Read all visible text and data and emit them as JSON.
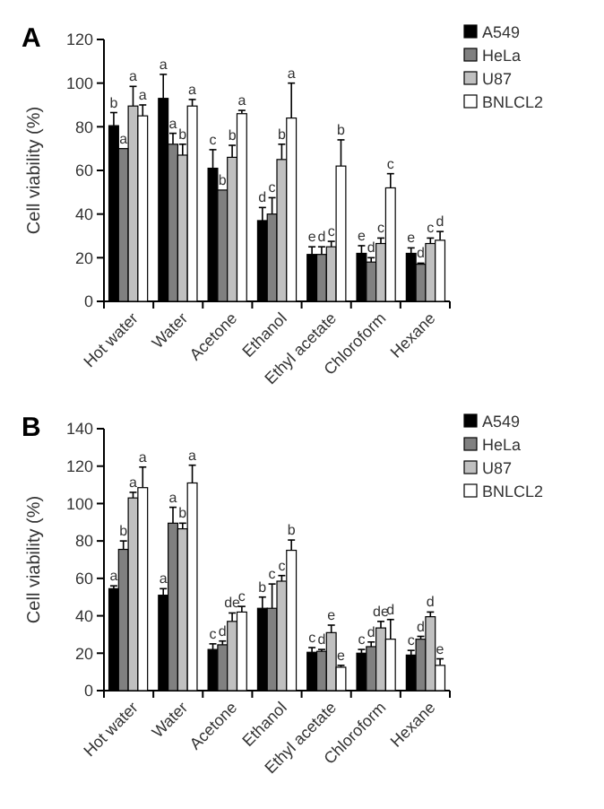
{
  "chart_data": [
    {
      "type": "bar",
      "title": "A",
      "ylabel": "Cell viability (%)",
      "categories": [
        "Hot water",
        "Water",
        "Acetone",
        "Ethanol",
        "Ethyl acetate",
        "Chloroform",
        "Hexane"
      ],
      "ylim": [
        0,
        120
      ],
      "yticks": [
        0,
        20,
        40,
        60,
        80,
        100,
        120
      ],
      "legend": "top right",
      "series": [
        {
          "name": "A549",
          "color": "#000000",
          "values": [
            80.5,
            93,
            61,
            37,
            21.5,
            22,
            22
          ],
          "errors": [
            6,
            11,
            8.5,
            6,
            3.5,
            3.5,
            2.5
          ],
          "value_labels": [
            "b",
            "a",
            "c",
            "d",
            "e",
            "e",
            "e"
          ]
        },
        {
          "name": "HeLa",
          "color": "#808080",
          "values": [
            70,
            72,
            51,
            40,
            21.5,
            18,
            17
          ],
          "errors": [
            null,
            5,
            null,
            7.5,
            3.5,
            2,
            0.5
          ],
          "value_labels": [
            "a",
            "a",
            "b",
            "c",
            "d",
            "d",
            "d"
          ]
        },
        {
          "name": "U87",
          "color": "#c0c0c0",
          "values": [
            89.5,
            67,
            66,
            65,
            25,
            26.5,
            26.5
          ],
          "errors": [
            9,
            5,
            5.5,
            7,
            2.5,
            2.5,
            2.5
          ],
          "value_labels": [
            "a",
            "b",
            "b",
            "b",
            "c",
            "c",
            "c"
          ]
        },
        {
          "name": "BNLCL2",
          "color": "#ffffff",
          "values": [
            85,
            89.5,
            86,
            84,
            62,
            52,
            28
          ],
          "errors": [
            5,
            3,
            1.5,
            16,
            12,
            6.5,
            4
          ],
          "value_labels": [
            "a",
            "a",
            "a",
            "a",
            "b",
            "c",
            "d"
          ]
        }
      ]
    },
    {
      "type": "bar",
      "title": "B",
      "ylabel": "Cell viability (%)",
      "categories": [
        "Hot water",
        "Water",
        "Acetone",
        "Ethanol",
        "Ethyl acetate",
        "Chloroform",
        "Hexane"
      ],
      "ylim": [
        0,
        140
      ],
      "yticks": [
        0,
        20,
        40,
        60,
        80,
        100,
        120,
        140
      ],
      "legend": "top right",
      "series": [
        {
          "name": "A549",
          "color": "#000000",
          "values": [
            54.5,
            51,
            22,
            44,
            20.5,
            20,
            19
          ],
          "errors": [
            1.5,
            3.5,
            3,
            6,
            2.5,
            2,
            2.5
          ],
          "value_labels": [
            "a",
            "a",
            "c",
            "b",
            "c",
            "c",
            "c"
          ]
        },
        {
          "name": "HeLa",
          "color": "#808080",
          "values": [
            75.5,
            89.5,
            24.5,
            44,
            21,
            23.5,
            27.5
          ],
          "errors": [
            4.5,
            8.5,
            2,
            13,
            1,
            2.5,
            1.5
          ],
          "value_labels": [
            "b",
            "a",
            "d",
            "c",
            "d",
            "d",
            "d"
          ]
        },
        {
          "name": "U87",
          "color": "#c0c0c0",
          "values": [
            103,
            86.5,
            37,
            58.5,
            31,
            33.5,
            39.5
          ],
          "errors": [
            3,
            3,
            4.5,
            3,
            4,
            3.5,
            2.5
          ],
          "value_labels": [
            "a",
            "b",
            "de",
            "c",
            "e",
            "de",
            "d"
          ]
        },
        {
          "name": "BNLCL2",
          "color": "#ffffff",
          "values": [
            108.5,
            111,
            42,
            75,
            12.5,
            27.5,
            13.5
          ],
          "errors": [
            11,
            9.5,
            3,
            5.5,
            1,
            10.5,
            3.5
          ],
          "value_labels": [
            "a",
            "a",
            "c",
            "b",
            "e",
            "d",
            "e"
          ]
        }
      ]
    }
  ]
}
